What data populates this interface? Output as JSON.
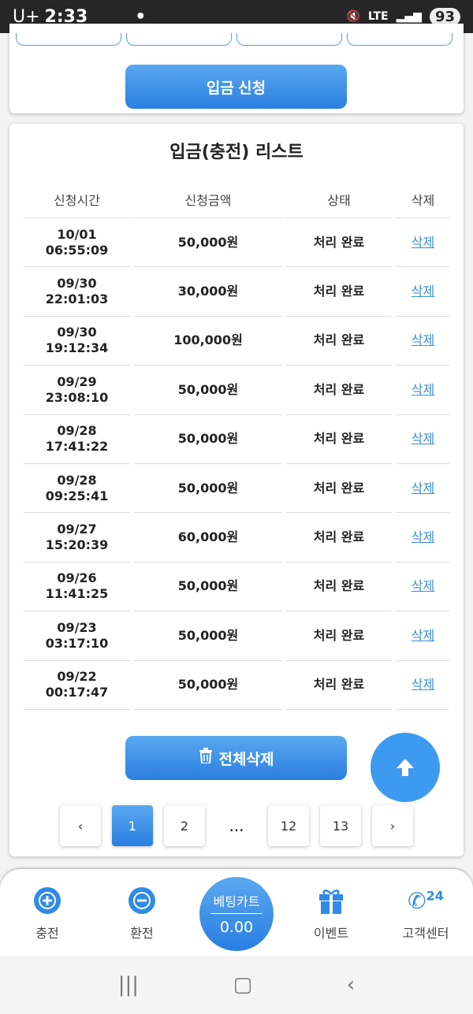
{
  "status_bar": {
    "carrier": "U+",
    "time": "2:33",
    "network": "LTE",
    "battery": "93"
  },
  "deposit_button": "입금 신청",
  "list": {
    "title": "입금(충전) 리스트",
    "columns": [
      "신청시간",
      "신청금액",
      "상태",
      "삭제"
    ],
    "rows": [
      {
        "date": "10/01",
        "time": "06:55:09",
        "amount": "50,000원",
        "status": "처리 완료",
        "delete": "삭제"
      },
      {
        "date": "09/30",
        "time": "22:01:03",
        "amount": "30,000원",
        "status": "처리 완료",
        "delete": "삭제"
      },
      {
        "date": "09/30",
        "time": "19:12:34",
        "amount": "100,000원",
        "status": "처리 완료",
        "delete": "삭제"
      },
      {
        "date": "09/29",
        "time": "23:08:10",
        "amount": "50,000원",
        "status": "처리 완료",
        "delete": "삭제"
      },
      {
        "date": "09/28",
        "time": "17:41:22",
        "amount": "50,000원",
        "status": "처리 완료",
        "delete": "삭제"
      },
      {
        "date": "09/28",
        "time": "09:25:41",
        "amount": "50,000원",
        "status": "처리 완료",
        "delete": "삭제"
      },
      {
        "date": "09/27",
        "time": "15:20:39",
        "amount": "60,000원",
        "status": "처리 완료",
        "delete": "삭제"
      },
      {
        "date": "09/26",
        "time": "11:41:25",
        "amount": "50,000원",
        "status": "처리 완료",
        "delete": "삭제"
      },
      {
        "date": "09/23",
        "time": "03:17:10",
        "amount": "50,000원",
        "status": "처리 완료",
        "delete": "삭제"
      },
      {
        "date": "09/22",
        "time": "00:17:47",
        "amount": "50,000원",
        "status": "처리 완료",
        "delete": "삭제"
      }
    ],
    "delete_all": "전체삭제"
  },
  "pagination": {
    "pages": [
      "1",
      "2",
      "...",
      "12",
      "13"
    ],
    "current": "1"
  },
  "bottom_nav": {
    "charge": "충전",
    "exchange": "환전",
    "betting_cart": "베팅카트",
    "cart_value": "0.00",
    "event": "이벤트",
    "support": "고객센터",
    "support_badge": "24"
  },
  "colors": {
    "accent": "#3d9af0",
    "link": "#3a8fd8"
  }
}
